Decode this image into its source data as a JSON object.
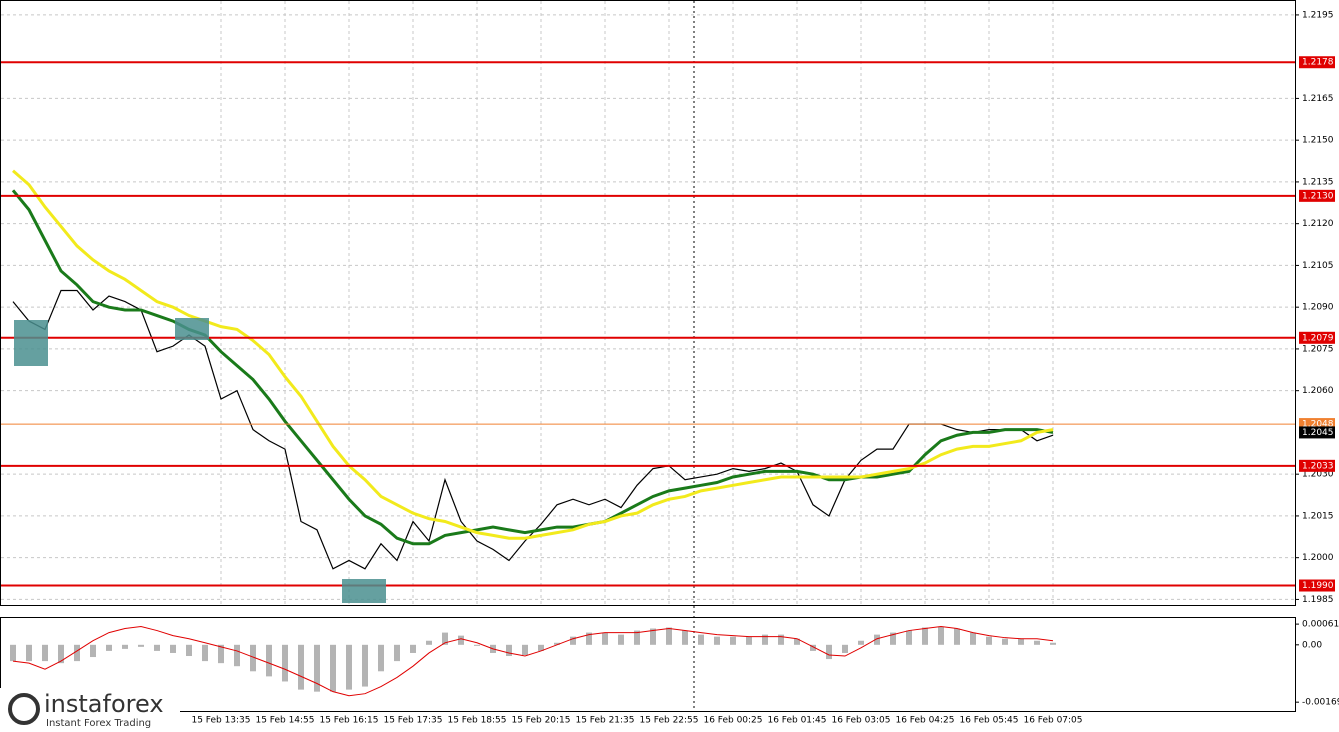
{
  "chart_data": [
    {
      "type": "line",
      "series": [
        {
          "color": "#000000",
          "values": [
            1.2092,
            1.2085,
            1.2082,
            1.2096,
            1.2096,
            1.2089,
            1.2094,
            1.2092,
            1.2089,
            1.2074,
            1.2076,
            1.208,
            1.2076,
            1.2057,
            1.206,
            1.2046,
            1.2042,
            1.2039,
            1.2013,
            1.201,
            1.1996,
            1.1999,
            1.1996,
            1.2005,
            1.1999,
            1.2013,
            1.2006,
            1.2028,
            1.2013,
            1.2006,
            1.2003,
            1.1999,
            1.2006,
            1.2012,
            1.2019,
            1.2021,
            1.2019,
            1.2021,
            1.2018,
            1.2026,
            1.2032,
            1.2033,
            1.2028,
            1.2029,
            1.203,
            1.2032,
            1.2031,
            1.2032,
            1.2034,
            1.2031,
            1.2019,
            1.2015,
            1.2028,
            1.2035,
            1.2039,
            1.2039,
            1.2048,
            1.2048,
            1.2048,
            1.2046,
            1.2045,
            1.2046,
            1.2046,
            1.2046,
            1.2042,
            1.2044
          ]
        },
        {
          "color": "#1a7a1a",
          "values": [
            1.2132,
            1.2125,
            1.2114,
            1.2103,
            1.2098,
            1.2092,
            1.209,
            1.2089,
            1.2089,
            1.2087,
            1.2085,
            1.2082,
            1.208,
            1.2074,
            1.2069,
            1.2064,
            1.2057,
            1.2049,
            1.2042,
            1.2035,
            1.2028,
            1.2021,
            1.2015,
            1.2012,
            1.2007,
            1.2005,
            1.2005,
            1.2008,
            1.2009,
            1.201,
            1.2011,
            1.201,
            1.2009,
            1.201,
            1.2011,
            1.2011,
            1.2012,
            1.2013,
            1.2016,
            1.2019,
            1.2022,
            1.2024,
            1.2025,
            1.2026,
            1.2027,
            1.2029,
            1.203,
            1.2031,
            1.2031,
            1.2031,
            1.203,
            1.2028,
            1.2028,
            1.2029,
            1.2029,
            1.203,
            1.2031,
            1.2037,
            1.2042,
            1.2044,
            1.2045,
            1.2045,
            1.2046,
            1.2046,
            1.2046,
            1.2045
          ]
        },
        {
          "color": "#f2ea1c",
          "values": [
            1.2139,
            1.2134,
            1.2126,
            1.2119,
            1.2112,
            1.2107,
            1.2103,
            1.21,
            1.2096,
            1.2092,
            1.209,
            1.2087,
            1.2085,
            1.2083,
            1.2082,
            1.2078,
            1.2073,
            1.2065,
            1.2058,
            1.2049,
            1.204,
            1.2033,
            1.2028,
            1.2022,
            1.2019,
            1.2016,
            1.2014,
            1.2013,
            1.2011,
            1.2009,
            1.2008,
            1.2007,
            1.2007,
            1.2008,
            1.2009,
            1.201,
            1.2012,
            1.2013,
            1.2015,
            1.2016,
            1.2019,
            1.2021,
            1.2022,
            1.2024,
            1.2025,
            1.2026,
            1.2027,
            1.2028,
            1.2029,
            1.2029,
            1.2029,
            1.2029,
            1.2029,
            1.2029,
            1.203,
            1.2031,
            1.2032,
            1.2034,
            1.2037,
            1.2039,
            1.204,
            1.204,
            1.2041,
            1.2042,
            1.2045,
            1.2046
          ]
        }
      ],
      "ylim": [
        1.1983,
        1.22
      ],
      "yticks": [
        1.2195,
        1.2165,
        {
          "value": 1.215,
          "label": "1.2150"
        },
        1.2135,
        {
          "value": 1.212,
          "label": "1.2120"
        },
        1.2105,
        {
          "value": 1.209,
          "label": "1.2090"
        },
        1.2075,
        {
          "value": 1.206,
          "label": "1.2060"
        },
        {
          "value": 1.203,
          "label": "1.2030"
        },
        1.2015,
        {
          "value": 1.2,
          "label": "1.2000"
        },
        1.1985
      ],
      "grid": true,
      "levels": [
        {
          "value": 1.2178,
          "color": "#e00000"
        },
        {
          "value": 1.213,
          "label": "1.2130",
          "color": "#e00000"
        },
        {
          "value": 1.2079,
          "color": "#e00000"
        },
        {
          "value": 1.2048,
          "color": "#f08030"
        },
        {
          "value": 1.2045,
          "color": "#000000"
        },
        {
          "value": 1.2033,
          "color": "#e00000"
        },
        {
          "value": 1.199,
          "label": "1.1990",
          "color": "#e00000"
        }
      ]
    },
    {
      "type": "bar",
      "categories": [
        null,
        null,
        null,
        null,
        null,
        null,
        null,
        null,
        null,
        null,
        null,
        null,
        null,
        "15 Feb 13:35",
        null,
        null,
        null,
        "15 Feb 14:55",
        null,
        null,
        null,
        "15 Feb 16:15",
        null,
        null,
        null,
        "15 Feb 17:35",
        null,
        null,
        null,
        "15 Feb 18:55",
        null,
        null,
        null,
        "15 Feb 20:15",
        null,
        null,
        null,
        "15 Feb 21:35",
        null,
        null,
        null,
        "15 Feb 22:55",
        null,
        null,
        null,
        "16 Feb 00:25",
        null,
        null,
        null,
        "16 Feb 01:45",
        null,
        null,
        null,
        "16 Feb 03:05",
        null,
        null,
        null,
        "16 Feb 04:25",
        null,
        null,
        null,
        "16 Feb 05:45",
        null,
        null,
        null,
        "16 Feb 07:05"
      ],
      "series": [
        {
          "type": "bar",
          "color": "#b4b4b4",
          "values": [
            -0.00048,
            -0.00048,
            -0.00048,
            -0.00054,
            -0.00048,
            -0.00036,
            -0.00018,
            -0.00012,
            -6e-05,
            -0.00018,
            -0.00024,
            -0.00033,
            -0.00048,
            -0.00054,
            -0.00063,
            -0.00078,
            -0.00093,
            -0.00108,
            -0.00132,
            -0.00138,
            -0.00138,
            -0.00132,
            -0.00123,
            -0.00078,
            -0.00048,
            -0.00024,
            0.00012,
            0.00036,
            0.00027,
            -3e-05,
            -0.00024,
            -0.00033,
            -0.0003,
            -0.00018,
            6e-05,
            0.00024,
            0.00036,
            0.00036,
            0.0003,
            0.00042,
            0.00048,
            0.00051,
            0.00042,
            0.0003,
            0.00024,
            0.00024,
            0.00024,
            0.0003,
            0.0003,
            0.00018,
            -0.00018,
            -0.00042,
            -0.00024,
            0.00012,
            0.0003,
            0.00036,
            0.00042,
            0.00051,
            0.00054,
            0.00048,
            0.00036,
            0.00024,
            0.00018,
            0.00018,
            0.00012,
            6e-05
          ]
        },
        {
          "type": "line",
          "color": "#e00000",
          "values": [
            -0.00048,
            -0.00054,
            -0.00072,
            -0.00048,
            -0.00018,
            0.00012,
            0.00036,
            0.00048,
            0.00054,
            0.00042,
            0.00027,
            0.00018,
            6e-05,
            -6e-05,
            -0.00018,
            -0.00036,
            -0.00054,
            -0.00072,
            -0.00093,
            -0.00114,
            -0.00138,
            -0.0015,
            -0.00144,
            -0.00123,
            -0.00096,
            -0.00063,
            -0.00024,
            6e-05,
            0.00018,
            6e-05,
            -0.00012,
            -0.00024,
            -0.00033,
            -0.00018,
            0,
            0.00018,
            0.0003,
            0.00036,
            0.00036,
            0.00036,
            0.00042,
            0.00048,
            0.00042,
            0.00036,
            0.0003,
            0.00027,
            0.00024,
            0.00024,
            0.00024,
            0.00018,
            -6e-05,
            -0.0003,
            -0.00033,
            -9e-05,
            0.00018,
            0.0003,
            0.00042,
            0.00048,
            0.00054,
            0.00048,
            0.00036,
            0.00027,
            0.00021,
            0.00018,
            0.00018,
            0.00012
          ]
        }
      ],
      "ylim": [
        -0.00195,
        0.00079
      ],
      "yticks": [
        0.00061,
        {
          "value": 0,
          "label": "0.00"
        },
        -0.00169
      ]
    }
  ],
  "logo": {
    "name": "instaforex",
    "tagline": "Instant Forex Trading"
  }
}
